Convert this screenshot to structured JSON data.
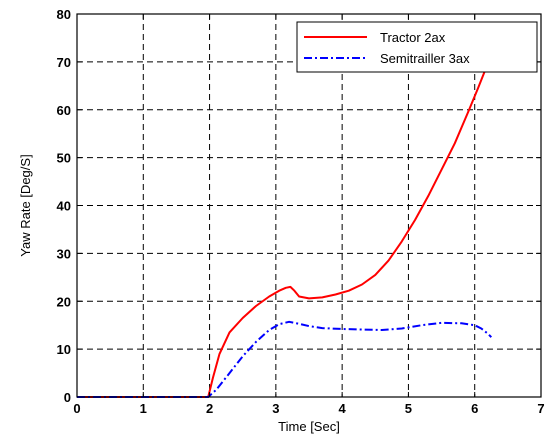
{
  "chart_data": {
    "type": "line",
    "title": "",
    "xlabel": "Time [Sec]",
    "ylabel": "Yaw Rate [Deg/S]",
    "xlim": [
      0,
      7
    ],
    "ylim": [
      0,
      80
    ],
    "xticks": [
      "0",
      "1",
      "2",
      "3",
      "4",
      "5",
      "6",
      "7"
    ],
    "yticks": [
      "0",
      "10",
      "20",
      "30",
      "40",
      "50",
      "60",
      "70",
      "80"
    ],
    "grid": true,
    "grid_style": "dashed",
    "legend_position": "top-right",
    "series": [
      {
        "name": "Tractor 2ax",
        "color": "#ff0000",
        "style": "solid",
        "x": [
          0,
          1.0,
          1.5,
          1.98,
          2.05,
          2.15,
          2.3,
          2.5,
          2.7,
          2.9,
          3.05,
          3.15,
          3.22,
          3.28,
          3.35,
          3.5,
          3.7,
          3.9,
          4.1,
          4.3,
          4.5,
          4.7,
          4.9,
          5.1,
          5.3,
          5.5,
          5.7,
          5.9,
          6.05,
          6.15,
          6.22
        ],
        "y": [
          0,
          0,
          0,
          0,
          4,
          9,
          13.5,
          16.5,
          19,
          21,
          22.2,
          22.8,
          23,
          22.2,
          21,
          20.6,
          20.8,
          21.4,
          22.2,
          23.5,
          25.5,
          28.5,
          32.5,
          37,
          42,
          47.5,
          53,
          59.5,
          64.5,
          68,
          70
        ]
      },
      {
        "name": "Semitrailler 3ax",
        "color": "#0000ff",
        "style": "dash-dot",
        "x": [
          0,
          1.0,
          1.5,
          1.98,
          2.1,
          2.3,
          2.5,
          2.7,
          2.9,
          3.05,
          3.2,
          3.35,
          3.5,
          3.7,
          4.0,
          4.3,
          4.6,
          4.9,
          5.2,
          5.5,
          5.8,
          6.0,
          6.1,
          6.2,
          6.25
        ],
        "y": [
          0,
          0,
          0,
          0,
          1.5,
          5,
          8.5,
          11.5,
          14,
          15.2,
          15.7,
          15.3,
          14.8,
          14.4,
          14.2,
          14.1,
          14.0,
          14.3,
          15.0,
          15.5,
          15.4,
          15.0,
          14.3,
          13.2,
          12.5
        ]
      }
    ]
  }
}
